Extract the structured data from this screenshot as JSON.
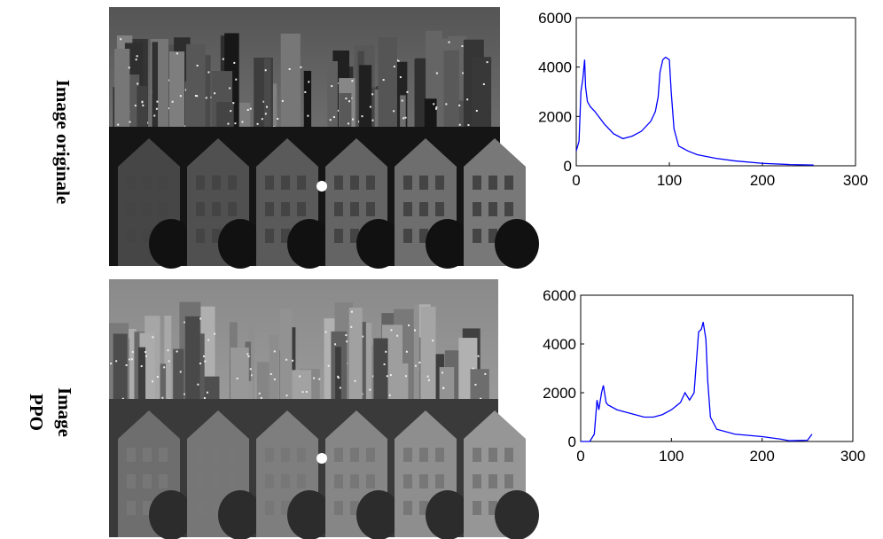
{
  "row_labels": [
    [
      "Image originale"
    ],
    [
      "Image",
      "PPO"
    ]
  ],
  "chart_data": [
    {
      "type": "line",
      "xlim": [
        0,
        300
      ],
      "xticks": [
        0,
        100,
        200,
        300
      ],
      "ylim": [
        0,
        6000
      ],
      "yticks": [
        0,
        2000,
        4000,
        6000
      ],
      "series": [
        {
          "color": "#0000ff",
          "x": [
            0,
            3,
            5,
            7,
            9,
            10,
            12,
            15,
            20,
            30,
            40,
            50,
            60,
            70,
            80,
            85,
            88,
            90,
            93,
            96,
            100,
            102,
            105,
            110,
            120,
            130,
            150,
            170,
            200,
            230,
            255
          ],
          "values": [
            600,
            1000,
            3000,
            3500,
            4300,
            3200,
            2600,
            2400,
            2200,
            1700,
            1300,
            1100,
            1200,
            1400,
            1800,
            2200,
            2800,
            3800,
            4300,
            4400,
            4300,
            3000,
            1500,
            800,
            600,
            450,
            300,
            200,
            100,
            50,
            30
          ]
        }
      ]
    },
    {
      "type": "line",
      "xlim": [
        0,
        300
      ],
      "xticks": [
        0,
        100,
        200,
        300
      ],
      "ylim": [
        0,
        6000
      ],
      "yticks": [
        0,
        2000,
        4000,
        6000
      ],
      "series": [
        {
          "color": "#0000ff",
          "x": [
            0,
            10,
            15,
            18,
            20,
            23,
            25,
            28,
            30,
            40,
            50,
            60,
            70,
            80,
            90,
            100,
            110,
            115,
            120,
            125,
            128,
            130,
            133,
            135,
            138,
            140,
            143,
            150,
            170,
            200,
            220,
            230,
            250,
            255
          ],
          "values": [
            0,
            0,
            300,
            1700,
            1300,
            2000,
            2300,
            1600,
            1500,
            1300,
            1200,
            1100,
            1000,
            1000,
            1100,
            1300,
            1600,
            2000,
            1700,
            2000,
            3500,
            4500,
            4600,
            4900,
            4200,
            2500,
            1000,
            500,
            300,
            200,
            100,
            30,
            50,
            300
          ]
        }
      ]
    }
  ]
}
